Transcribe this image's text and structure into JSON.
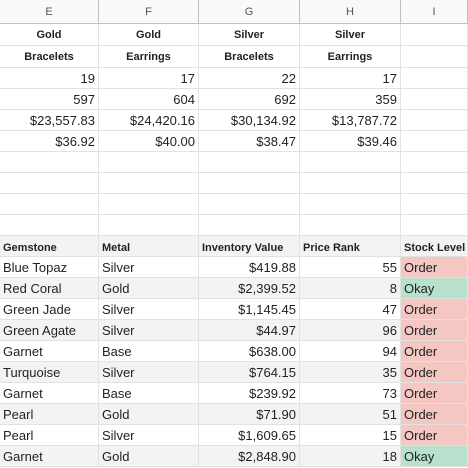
{
  "columns": [
    "E",
    "F",
    "G",
    "H",
    "I"
  ],
  "summary": {
    "headers_line1": [
      "Gold",
      "Gold",
      "Silver",
      "Silver",
      ""
    ],
    "headers_line2": [
      "Bracelets",
      "Earrings",
      "Bracelets",
      "Earrings",
      ""
    ],
    "rows": [
      [
        "19",
        "17",
        "22",
        "17",
        ""
      ],
      [
        "597",
        "604",
        "692",
        "359",
        ""
      ],
      [
        "$23,557.83",
        "$24,420.16",
        "$30,134.92",
        "$13,787.72",
        ""
      ],
      [
        "$36.92",
        "$40.00",
        "$38.47",
        "$39.46",
        ""
      ]
    ]
  },
  "table": {
    "headers": [
      "Gemstone",
      "Metal",
      "Inventory Value",
      "Price Rank",
      "Stock Level"
    ],
    "rows": [
      [
        "Blue Topaz",
        "Silver",
        "$419.88",
        "55",
        "Order"
      ],
      [
        "Red Coral",
        "Gold",
        "$2,399.52",
        "8",
        "Okay"
      ],
      [
        "Green Jade",
        "Silver",
        "$1,145.45",
        "47",
        "Order"
      ],
      [
        "Green Agate",
        "Silver",
        "$44.97",
        "96",
        "Order"
      ],
      [
        "Garnet",
        "Base",
        "$638.00",
        "94",
        "Order"
      ],
      [
        "Turquoise",
        "Silver",
        "$764.15",
        "35",
        "Order"
      ],
      [
        "Garnet",
        "Base",
        "$239.92",
        "73",
        "Order"
      ],
      [
        "Pearl",
        "Gold",
        "$71.90",
        "51",
        "Order"
      ],
      [
        "Pearl",
        "Silver",
        "$1,609.65",
        "15",
        "Order"
      ],
      [
        "Garnet",
        "Gold",
        "$2,848.90",
        "18",
        "Okay"
      ]
    ]
  },
  "colors": {
    "order": "#f4c7c3",
    "okay": "#b7e1cd",
    "header_bg": "#f3f3f3"
  }
}
